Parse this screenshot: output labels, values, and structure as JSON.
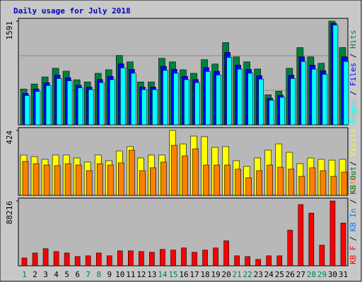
{
  "chart_data": [
    {
      "type": "bar",
      "title": "Daily usage for July 2018",
      "categories": [
        "1",
        "2",
        "3",
        "4",
        "5",
        "6",
        "7",
        "8",
        "9",
        "10",
        "11",
        "12",
        "13",
        "14",
        "15",
        "16",
        "17",
        "18",
        "19",
        "20",
        "21",
        "22",
        "23",
        "24",
        "25",
        "26",
        "27",
        "28",
        "29",
        "30",
        "31"
      ],
      "category_colors": [
        "#008040",
        "#000000",
        "#000000",
        "#000000",
        "#000000",
        "#000000",
        "#008040",
        "#008040",
        "#000000",
        "#000000",
        "#000000",
        "#000000",
        "#000000",
        "#008040",
        "#008040",
        "#000000",
        "#000000",
        "#000000",
        "#000000",
        "#000000",
        "#008040",
        "#008040",
        "#000000",
        "#000000",
        "#000000",
        "#000000",
        "#000000",
        "#008040",
        "#008040",
        "#000000",
        "#000000"
      ],
      "ylim": [
        0,
        1591
      ],
      "yticks": [
        1591
      ],
      "series": [
        {
          "name": "Hits",
          "color": "#008040",
          "values": [
            549,
            626,
            735,
            867,
            823,
            691,
            658,
            790,
            845,
            1064,
            966,
            658,
            658,
            1020,
            966,
            845,
            790,
            999,
            933,
            1262,
            1042,
            966,
            856,
            461,
            516,
            867,
            1185,
            1042,
            944,
            1591,
            1185
          ]
        },
        {
          "name": "Files",
          "color": "#0000ff",
          "values": [
            483,
            551,
            647,
            763,
            724,
            608,
            579,
            695,
            744,
            936,
            850,
            579,
            579,
            898,
            850,
            744,
            695,
            879,
            821,
            1111,
            917,
            850,
            753,
            406,
            454,
            763,
            1043,
            917,
            831,
            1560,
            1043
          ]
        },
        {
          "name": "Pages",
          "color": "#00ffff",
          "values": [
            450,
            513,
            603,
            711,
            675,
            567,
            540,
            648,
            693,
            873,
            792,
            540,
            540,
            836,
            792,
            693,
            648,
            819,
            765,
            1035,
            854,
            792,
            702,
            378,
            423,
            711,
            972,
            854,
            774,
            1530,
            972
          ]
        }
      ]
    },
    {
      "type": "bar",
      "ylim": [
        0,
        424
      ],
      "yticks": [
        424
      ],
      "series": [
        {
          "name": "Visits",
          "color": "#ffff00",
          "values": [
            263,
            253,
            235,
            263,
            263,
            244,
            217,
            263,
            226,
            290,
            318,
            244,
            263,
            263,
            424,
            336,
            387,
            383,
            313,
            318,
            226,
            189,
            244,
            295,
            336,
            281,
            207,
            244,
            235,
            230,
            235
          ]
        },
        {
          "name": "Sites",
          "color": "#ff8000",
          "values": [
            221,
            207,
            198,
            194,
            207,
            198,
            161,
            207,
            198,
            212,
            295,
            161,
            180,
            217,
            327,
            258,
            304,
            198,
            198,
            198,
            171,
            115,
            161,
            198,
            184,
            171,
            124,
            180,
            161,
            124,
            152
          ]
        }
      ]
    },
    {
      "type": "bar",
      "ylim": [
        0,
        88216
      ],
      "yticks": [
        88216
      ],
      "series": [
        {
          "name": "KB F",
          "color": "#ff0000",
          "values": [
            10663,
            17449,
            23266,
            19388,
            17449,
            12602,
            13572,
            17449,
            13572,
            20357,
            20357,
            19388,
            18419,
            22296,
            21327,
            24235,
            18419,
            21327,
            24235,
            33929,
            13572,
            12602,
            8725,
            13572,
            13572,
            48470,
            83368,
            71736,
            28113,
            88216,
            58164
          ]
        }
      ],
      "other_legend": [
        {
          "name": "KB In",
          "color": "#0080ff"
        },
        {
          "name": "KB Out",
          "color": "#008040"
        }
      ]
    }
  ]
}
